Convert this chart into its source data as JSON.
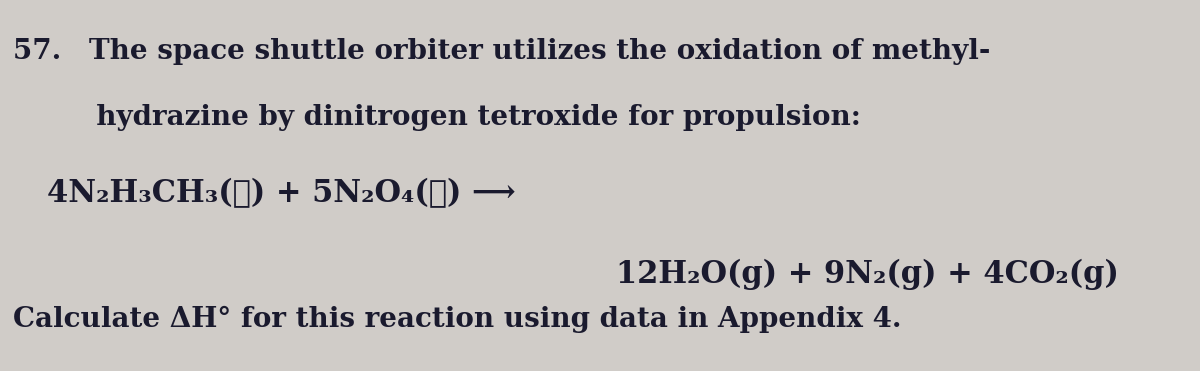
{
  "background_color": "#d0ccc8",
  "text_color": "#1a1a2e",
  "fig_width": 12.0,
  "fig_height": 3.71,
  "line1": "57. The space shuttle orbiter utilizes the oxidation of methyl-",
  "line2": "   hydrazine by dinitrogen tetroxide for propulsion:",
  "eq_line1_plain": "4N₂H₃CH₃(ℓ) + 5N₂O₄(ℓ) ⟶",
  "eq_line2_plain": "12H₂O(g) + 9N₂(g) + 4CO₂(g)",
  "calc_line": "Calculate ΔH° for this reaction using data in Appendix 4.",
  "font_size_header": 20,
  "font_size_eq": 22,
  "font_size_calc": 20
}
